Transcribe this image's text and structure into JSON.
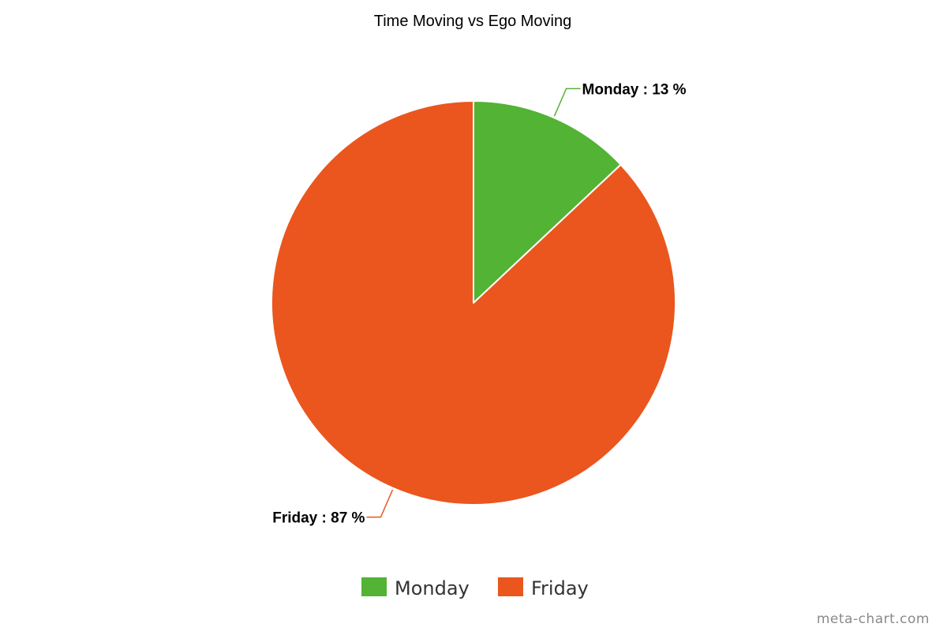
{
  "chart_data": {
    "type": "pie",
    "title": "Time Moving vs Ego Moving",
    "series": [
      {
        "name": "Monday",
        "value": 13,
        "color": "#52B334",
        "label": "Monday : 13 %"
      },
      {
        "name": "Friday",
        "value": 87,
        "color": "#EA561E",
        "label": "Friday : 87 %"
      }
    ],
    "legend": {
      "placement": "bottom-center",
      "items": [
        "Monday",
        "Friday"
      ]
    },
    "start_angle": "12 o'clock",
    "direction": "clockwise"
  },
  "watermark": "meta-chart.com"
}
